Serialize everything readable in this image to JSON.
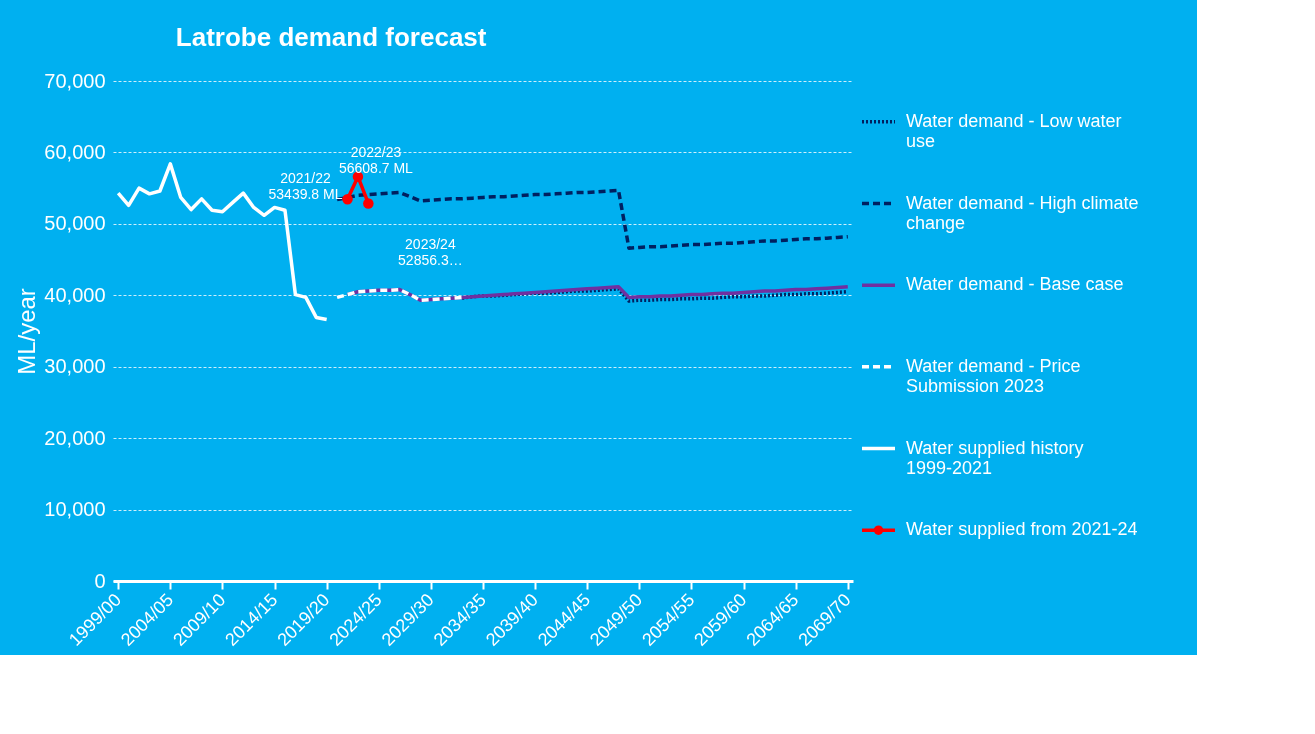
{
  "chart_data": {
    "type": "line",
    "title": "Latrobe demand forecast",
    "ylabel": "ML/year",
    "categories": [
      "1999/00",
      null,
      null,
      null,
      null,
      "2004/05",
      null,
      null,
      null,
      null,
      "2009/10",
      null,
      null,
      null,
      null,
      "2014/15",
      null,
      null,
      null,
      null,
      "2019/20",
      null,
      null,
      null,
      null,
      "2024/25",
      null,
      null,
      null,
      null,
      "2029/30",
      null,
      null,
      null,
      null,
      "2034/35",
      null,
      null,
      null,
      null,
      "2039/40",
      null,
      null,
      null,
      null,
      "2044/45",
      null,
      null,
      null,
      null,
      "2049/50",
      null,
      null,
      null,
      null,
      "2054/55",
      null,
      null,
      null,
      null,
      "2059/60",
      null,
      null,
      null,
      null,
      "2064/65",
      null,
      null,
      null,
      null,
      "2069/70"
    ],
    "ylim": [
      0,
      70000
    ],
    "yticks": [
      {
        "value": 0,
        "label": "0"
      },
      {
        "value": 10000,
        "label": "10,000"
      },
      {
        "value": 20000,
        "label": "20,000"
      },
      {
        "value": 30000,
        "label": "30,000"
      },
      {
        "value": 40000,
        "label": "40,000"
      },
      {
        "value": 50000,
        "label": "50,000"
      },
      {
        "value": 60000,
        "label": "60,000"
      },
      {
        "value": 70000,
        "label": "70,000"
      }
    ],
    "grid": "y",
    "legend": "right",
    "series": [
      {
        "name": "Water demand - Low water use",
        "color": "#002060",
        "line_style": "dotted",
        "values": [
          null,
          null,
          null,
          null,
          null,
          null,
          null,
          null,
          null,
          null,
          null,
          null,
          null,
          null,
          null,
          null,
          null,
          null,
          null,
          null,
          null,
          null,
          null,
          null,
          null,
          null,
          null,
          null,
          null,
          null,
          null,
          null,
          null,
          39600,
          39800,
          39900,
          39900,
          40000,
          40100,
          40200,
          40300,
          40300,
          40400,
          40500,
          40600,
          40600,
          40700,
          40800,
          40900,
          39200,
          39300,
          39300,
          39400,
          39400,
          39500,
          39500,
          39600,
          39600,
          39700,
          39800,
          39800,
          39900,
          39900,
          40000,
          40100,
          40100,
          40200,
          40200,
          40300,
          40400,
          40500
        ]
      },
      {
        "name": "Water demand - High climate change",
        "color": "#002060",
        "line_style": "dashed",
        "values": [
          null,
          null,
          null,
          null,
          null,
          null,
          null,
          null,
          null,
          null,
          null,
          null,
          null,
          null,
          null,
          null,
          null,
          null,
          null,
          null,
          null,
          53400,
          53700,
          54000,
          54100,
          54200,
          54300,
          54400,
          53800,
          53200,
          53300,
          53400,
          53500,
          53500,
          53600,
          53700,
          53800,
          53800,
          53900,
          54000,
          54100,
          54100,
          54200,
          54300,
          54400,
          54400,
          54500,
          54600,
          54700,
          46600,
          46700,
          46800,
          46800,
          46900,
          47000,
          47100,
          47100,
          47200,
          47300,
          47300,
          47400,
          47500,
          47600,
          47600,
          47700,
          47800,
          47900,
          47900,
          48000,
          48100,
          48200
        ]
      },
      {
        "name": "Water demand - Base case",
        "color": "#7030a0",
        "line_style": "solid",
        "values": [
          null,
          null,
          null,
          null,
          null,
          null,
          null,
          null,
          null,
          null,
          null,
          null,
          null,
          null,
          null,
          null,
          null,
          null,
          null,
          null,
          null,
          null,
          40100,
          40500,
          40600,
          40700,
          40700,
          40800,
          40100,
          39300,
          39400,
          39500,
          39600,
          39700,
          39800,
          39900,
          40000,
          40100,
          40200,
          40300,
          40400,
          40500,
          40600,
          40700,
          40800,
          40900,
          41000,
          41100,
          41200,
          39700,
          39800,
          39800,
          39900,
          39900,
          40000,
          40100,
          40100,
          40200,
          40300,
          40300,
          40400,
          40500,
          40600,
          40600,
          40700,
          40800,
          40800,
          40900,
          41000,
          41100,
          41200
        ]
      },
      {
        "name": "Water demand - Price Submission 2023",
        "color": "#ffffff",
        "line_style": "dashed",
        "values": [
          null,
          null,
          null,
          null,
          null,
          null,
          null,
          null,
          null,
          null,
          null,
          null,
          null,
          null,
          null,
          null,
          null,
          null,
          null,
          null,
          null,
          39700,
          40100,
          40500,
          40600,
          40700,
          40700,
          40800,
          40100,
          39300,
          39400,
          39500,
          39600,
          39700,
          null,
          null,
          null,
          null,
          null,
          null,
          null,
          null,
          null,
          null,
          null,
          null,
          null,
          null,
          null,
          null,
          null,
          null,
          null,
          null,
          null,
          null,
          null,
          null,
          null,
          null,
          null,
          null,
          null,
          null,
          null,
          null,
          null,
          null,
          null,
          null,
          null
        ]
      },
      {
        "name": "Water supplied history 1999-2021",
        "color": "#ffffff",
        "line_style": "solid",
        "values": [
          54300,
          52600,
          55000,
          54200,
          54600,
          58400,
          53700,
          52000,
          53500,
          51900,
          51700,
          53000,
          54300,
          52300,
          51200,
          52300,
          51900,
          40100,
          39700,
          36900,
          36600,
          null,
          null,
          null,
          null,
          null,
          null,
          null,
          null,
          null,
          null,
          null,
          null,
          null,
          null,
          null,
          null,
          null,
          null,
          null,
          null,
          null,
          null,
          null,
          null,
          null,
          null,
          null,
          null,
          null,
          null,
          null,
          null,
          null,
          null,
          null,
          null,
          null,
          null,
          null,
          null,
          null,
          null,
          null,
          null,
          null,
          null,
          null,
          null,
          null,
          null
        ]
      },
      {
        "name": "Water supplied from 2021-24",
        "color": "#ff0000",
        "line_style": "solid",
        "marker": "circle",
        "values": [
          null,
          null,
          null,
          null,
          null,
          null,
          null,
          null,
          null,
          null,
          null,
          null,
          null,
          null,
          null,
          null,
          null,
          null,
          null,
          null,
          null,
          null,
          53439.8,
          56608.7,
          52856.3,
          null,
          null,
          null,
          null,
          null,
          null,
          null,
          null,
          null,
          null,
          null,
          null,
          null,
          null,
          null,
          null,
          null,
          null,
          null,
          null,
          null,
          null,
          null,
          null,
          null,
          null,
          null,
          null,
          null,
          null,
          null,
          null,
          null,
          null,
          null,
          null,
          null,
          null,
          null,
          null,
          null,
          null,
          null,
          null,
          null,
          null
        ]
      }
    ],
    "annotations": [
      "2021/22\n53439.8 ML",
      "2022/23\n56608.7 ML",
      "2023/24\n52856.3…"
    ]
  }
}
